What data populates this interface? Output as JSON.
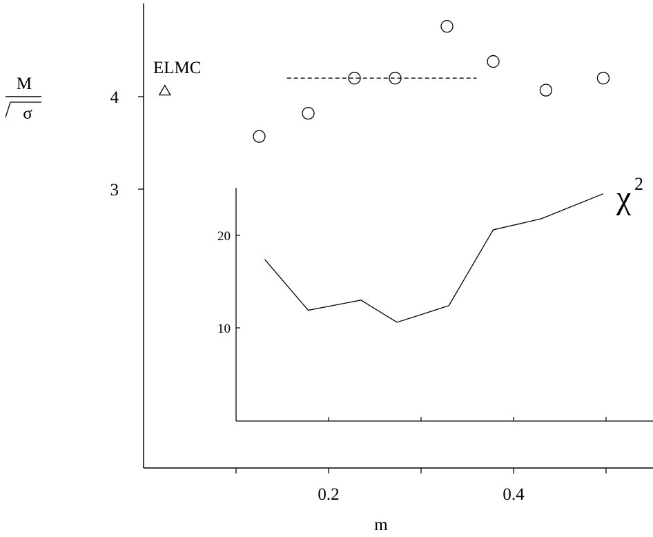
{
  "chart_data": [
    {
      "type": "scatter",
      "title": "",
      "xlabel": "m",
      "ylabel": {
        "numerator": "M",
        "denominator": "σ"
      },
      "xlim": [
        0.0,
        0.55
      ],
      "ylim": [
        0.0,
        5.0
      ],
      "xticks": [
        0.1,
        0.2,
        0.3,
        0.4,
        0.5
      ],
      "xtick_labels": [
        {
          "value": 0.2,
          "label": "0.2"
        },
        {
          "value": 0.4,
          "label": "0.4"
        }
      ],
      "yticks": [
        {
          "value": 4,
          "label": "4"
        },
        {
          "value": 3,
          "label": "3"
        }
      ],
      "grid": false,
      "series": [
        {
          "marker": "circle",
          "x": [
            0.125,
            0.178,
            0.228,
            0.272,
            0.328,
            0.378,
            0.435,
            0.497
          ],
          "y": [
            3.57,
            3.82,
            4.2,
            4.2,
            4.76,
            4.38,
            4.07,
            4.2
          ]
        }
      ],
      "reference_line": {
        "style": "dashed",
        "x_start": 0.155,
        "x_end": 0.36,
        "y": 4.2
      },
      "annotation": {
        "label": "ELMC",
        "marker": "triangle",
        "x": 0.023,
        "y": 4.07
      }
    },
    {
      "type": "line",
      "title": "",
      "ylabel": "χ",
      "ylabel_superscript": "2",
      "xlim": [
        0.1,
        0.55
      ],
      "ylim": [
        0,
        25
      ],
      "xticks": [
        0.2,
        0.3,
        0.4,
        0.5
      ],
      "yticks": [
        {
          "value": 20,
          "label": "20"
        },
        {
          "value": 10,
          "label": "10"
        }
      ],
      "grid": false,
      "series": [
        {
          "x": [
            0.131,
            0.178,
            0.235,
            0.274,
            0.33,
            0.378,
            0.43,
            0.497
          ],
          "y": [
            17.4,
            11.9,
            13.0,
            10.6,
            12.4,
            20.6,
            21.8,
            24.5
          ]
        }
      ]
    }
  ]
}
